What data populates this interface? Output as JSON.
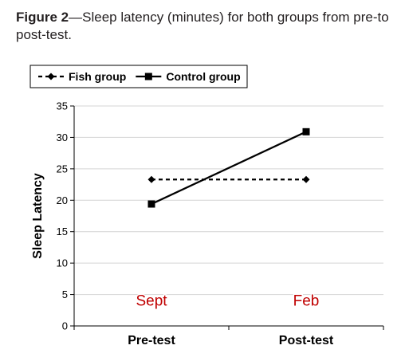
{
  "caption": {
    "figure_label": "Figure 2",
    "text": "—Sleep latency (minutes) for both groups from pre-to post-test."
  },
  "chart_data": {
    "type": "line",
    "categories": [
      "Pre-test",
      "Post-test"
    ],
    "series": [
      {
        "name": "Fish group",
        "values": [
          23.3,
          23.3
        ],
        "line_style": "dotted",
        "marker": "diamond",
        "color": "#000000"
      },
      {
        "name": "Control group",
        "values": [
          19.4,
          30.9
        ],
        "line_style": "solid",
        "marker": "square",
        "color": "#000000"
      }
    ],
    "ylabel": "Sleep Latency",
    "ylim": [
      0,
      35
    ],
    "yticks": [
      "0",
      "5",
      "10",
      "15",
      "20",
      "25",
      "30",
      "35"
    ],
    "grid": true,
    "legend_position": "top-left",
    "annotations": [
      {
        "text": "Sept",
        "category": "Pre-test",
        "y": 4,
        "color": "#c00000"
      },
      {
        "text": "Feb",
        "category": "Post-test",
        "y": 4,
        "color": "#c00000"
      }
    ]
  }
}
